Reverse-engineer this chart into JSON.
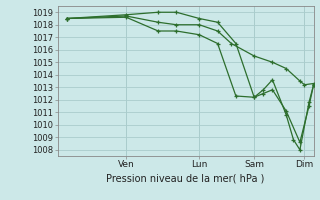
{
  "xlabel": "Pression niveau de la mer( hPa )",
  "background_color": "#cce8e8",
  "grid_color": "#aacccc",
  "line_color": "#2d6e2d",
  "ylim": [
    1007.5,
    1019.5
  ],
  "xlim": [
    0,
    280
  ],
  "xtick_positions": [
    75,
    155,
    215,
    270
  ],
  "xtick_labels": [
    "Ven",
    "Lun",
    "Sam",
    "Dim"
  ],
  "yticks": [
    1008,
    1009,
    1010,
    1011,
    1012,
    1013,
    1014,
    1015,
    1016,
    1017,
    1018,
    1019
  ],
  "series1_x": [
    10,
    75,
    110,
    130,
    155,
    175,
    190,
    215,
    235,
    250,
    265,
    270,
    280
  ],
  "series1_y": [
    1018.5,
    1018.7,
    1018.2,
    1018.0,
    1018.0,
    1017.5,
    1016.5,
    1015.5,
    1015.0,
    1014.5,
    1013.5,
    1013.2,
    1013.3
  ],
  "series2_x": [
    10,
    75,
    110,
    130,
    155,
    175,
    195,
    215,
    225,
    235,
    250,
    265,
    275,
    280
  ],
  "series2_y": [
    1018.5,
    1018.8,
    1019.0,
    1019.0,
    1018.5,
    1018.2,
    1016.5,
    1012.2,
    1012.5,
    1012.8,
    1011.1,
    1008.6,
    1011.5,
    1013.2
  ],
  "series3_x": [
    10,
    75,
    110,
    130,
    155,
    175,
    195,
    215,
    225,
    235,
    250,
    258,
    265,
    275,
    280
  ],
  "series3_y": [
    1018.5,
    1018.6,
    1017.5,
    1017.5,
    1017.2,
    1016.5,
    1012.3,
    1012.2,
    1012.8,
    1013.6,
    1010.8,
    1008.8,
    1008.0,
    1011.8,
    1013.2
  ]
}
